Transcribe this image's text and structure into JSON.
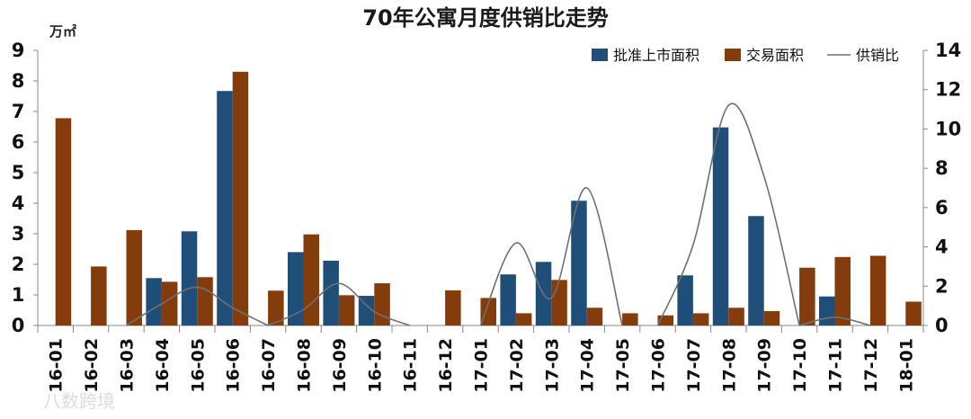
{
  "chart_data": {
    "type": "bar",
    "title": "70年公寓月度供销比走势",
    "y_unit": "万㎡",
    "categories": [
      "16-01",
      "16-02",
      "16-03",
      "16-04",
      "16-05",
      "16-06",
      "16-07",
      "16-08",
      "16-09",
      "16-10",
      "16-11",
      "16-12",
      "17-01",
      "17-02",
      "17-03",
      "17-04",
      "17-05",
      "17-06",
      "17-07",
      "17-08",
      "17-09",
      "17-10",
      "17-11",
      "17-12",
      "18-01"
    ],
    "ylim": [
      0,
      9
    ],
    "yticks": [
      0,
      1,
      2,
      3,
      4,
      5,
      6,
      7,
      8,
      9
    ],
    "y2lim": [
      0,
      14
    ],
    "y2ticks": [
      0,
      2,
      4,
      6,
      8,
      10,
      12,
      14
    ],
    "legend_position": "top-right",
    "grid": false,
    "series": [
      {
        "name": "批准上市面积",
        "type": "bar",
        "axis": "left",
        "color": "#1f4e79",
        "values": [
          0,
          0,
          0,
          1.55,
          3.08,
          7.67,
          0,
          2.4,
          2.12,
          0.97,
          0,
          0,
          0,
          1.67,
          2.08,
          4.08,
          0,
          0,
          1.64,
          6.48,
          3.58,
          0,
          0.95,
          0,
          0
        ]
      },
      {
        "name": "交易面积",
        "type": "bar",
        "axis": "left",
        "color": "#843c0c",
        "values": [
          6.78,
          1.93,
          3.12,
          1.43,
          1.58,
          8.3,
          1.14,
          2.98,
          0.99,
          1.38,
          0,
          1.15,
          0.9,
          0.4,
          1.49,
          0.58,
          0.4,
          0.33,
          0.4,
          0.58,
          0.47,
          1.89,
          2.24,
          2.28,
          0.78
        ]
      },
      {
        "name": "供销比",
        "type": "line",
        "axis": "right",
        "color": "#707070",
        "values": [
          0,
          0,
          0,
          1.1,
          1.95,
          0.9,
          0,
          0.8,
          2.14,
          0.7,
          0,
          0,
          0,
          4.2,
          1.4,
          7.0,
          0,
          0,
          4.1,
          11.2,
          7.6,
          0,
          0.42,
          0,
          0
        ]
      }
    ]
  },
  "watermark": "八数跨境"
}
